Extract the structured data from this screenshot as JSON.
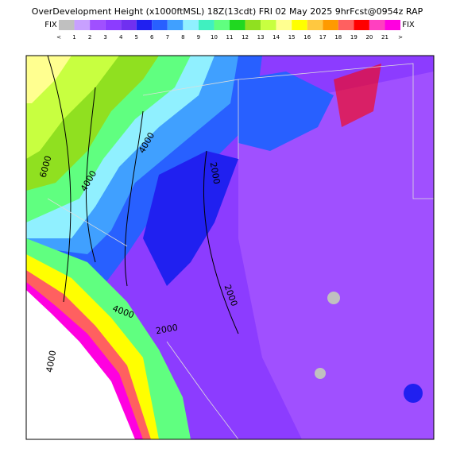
{
  "header": {
    "title": "OverDevelopment Height (x1000ftMSL) 18Z(13cdt) FRI 02 May 2025 9hrFcst@0954z RAP"
  },
  "colorbar": {
    "left_label": "FIX",
    "right_label": "FIX",
    "labels": [
      "<",
      "1",
      "2",
      "3",
      "4",
      "5",
      "6",
      "7",
      "8",
      "9",
      "10",
      "11",
      "12",
      "13",
      "14",
      "15",
      "16",
      "17",
      "18",
      "19",
      "20",
      "21",
      ">"
    ],
    "colors": [
      "#c0c0c0",
      "#c8a0ff",
      "#a050ff",
      "#8c3cff",
      "#7030f0",
      "#2020f0",
      "#2860ff",
      "#40a0ff",
      "#90f0ff",
      "#40f0c0",
      "#60ff80",
      "#20d820",
      "#90e020",
      "#c8ff40",
      "#ffff90",
      "#ffff00",
      "#ffc840",
      "#ff9a00",
      "#ff6060",
      "#ff0000",
      "#ff40c0",
      "#ff00e0"
    ]
  },
  "map": {
    "contour_labels": [
      "6000",
      "4000",
      "4000",
      "2000",
      "2000",
      "4000",
      "2000",
      "4000"
    ]
  }
}
